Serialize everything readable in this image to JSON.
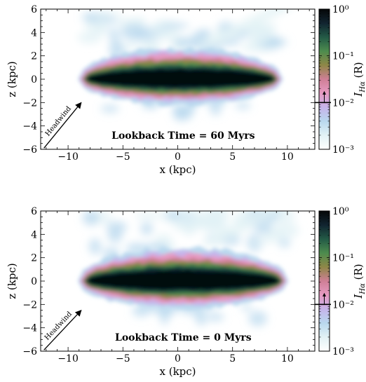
{
  "colors": {
    "colormap": [
      "#ffffff",
      "#e2f2f5",
      "#b9d8ee",
      "#c6b4ea",
      "#e69ac2",
      "#cf7f96",
      "#8f8747",
      "#4d8c4e",
      "#235a46",
      "#112430",
      "#050708"
    ]
  },
  "chart_data": [
    {
      "type": "heatmap",
      "title": "",
      "xlabel": "x  (kpc)",
      "ylabel": "z  (kpc)",
      "xlim": [
        -12.5,
        12.5
      ],
      "ylim": [
        -6,
        6
      ],
      "xticks": [
        -10,
        -5,
        0,
        5,
        10
      ],
      "xtick_labels": [
        "−10",
        "−5",
        "0",
        "5",
        "10"
      ],
      "yticks": [
        -6,
        -4,
        -2,
        0,
        2,
        4,
        6
      ],
      "ytick_labels": [
        "−6",
        "−4",
        "−2",
        "0",
        "2",
        "4",
        "6"
      ],
      "annotation": "Lookback Time = 60 Myrs",
      "arrow_label": "Headwind",
      "arrow_from": [
        -12.2,
        -5.9
      ],
      "arrow_to": [
        -8.8,
        -2.0
      ],
      "colorbar": {
        "label": "I_Hα (R)",
        "scale": "log",
        "range": [
          0.001,
          1
        ],
        "tick_labels": [
          "10⁰",
          "10⁻¹",
          "10⁻²",
          "10⁻³"
        ],
        "marker_value": 0.01
      },
      "disk": {
        "x_range": [
          -9,
          9.5
        ],
        "z_center": 0,
        "half_thickness": 1.4
      }
    },
    {
      "type": "heatmap",
      "title": "",
      "xlabel": "x  (kpc)",
      "ylabel": "z  (kpc)",
      "xlim": [
        -12.5,
        12.5
      ],
      "ylim": [
        -6,
        6
      ],
      "xticks": [
        -10,
        -5,
        0,
        5,
        10
      ],
      "xtick_labels": [
        "−10",
        "−5",
        "0",
        "5",
        "10"
      ],
      "yticks": [
        -6,
        -4,
        -2,
        0,
        2,
        4,
        6
      ],
      "ytick_labels": [
        "−6",
        "−4",
        "−2",
        "0",
        "2",
        "4",
        "6"
      ],
      "annotation": "Lookback Time = 0 Myrs",
      "arrow_label": "Headwind",
      "arrow_from": [
        -12.2,
        -5.9
      ],
      "arrow_to": [
        -8.8,
        -2.5
      ],
      "colorbar": {
        "label": "I_Hα (R)",
        "scale": "log",
        "range": [
          0.001,
          1
        ],
        "tick_labels": [
          "10⁰",
          "10⁻¹",
          "10⁻²",
          "10⁻³"
        ],
        "marker_value": 0.01
      },
      "disk": {
        "x_range": [
          -9,
          10
        ],
        "z_center": 0,
        "half_thickness": 1.5
      }
    }
  ]
}
